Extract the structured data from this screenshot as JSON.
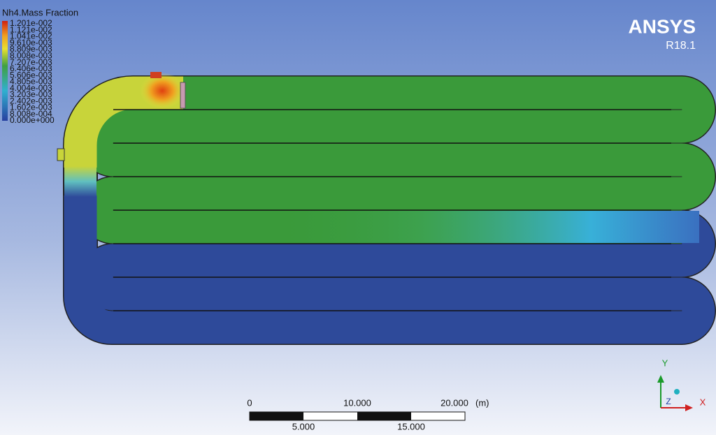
{
  "legend": {
    "title": "Nh4.Mass Fraction",
    "labels": [
      "1.201e-002",
      "1.121e-002",
      "1.041e-002",
      "9.610e-003",
      "8.809e-003",
      "8.008e-003",
      "7.207e-003",
      "6.406e-003",
      "5.606e-003",
      "4.805e-003",
      "4.004e-003",
      "3.203e-003",
      "2.402e-003",
      "1.602e-003",
      "8.008e-004",
      "0.000e+000"
    ]
  },
  "logo": {
    "brand": "ANSYS",
    "version": "R18.1"
  },
  "scale_bar": {
    "top_labels": [
      "0",
      "10.000",
      "20.000"
    ],
    "unit": "(m)",
    "bottom_labels": [
      "5.000",
      "15.000"
    ]
  },
  "axes": {
    "y": "Y",
    "z": "Z",
    "x": "X"
  }
}
